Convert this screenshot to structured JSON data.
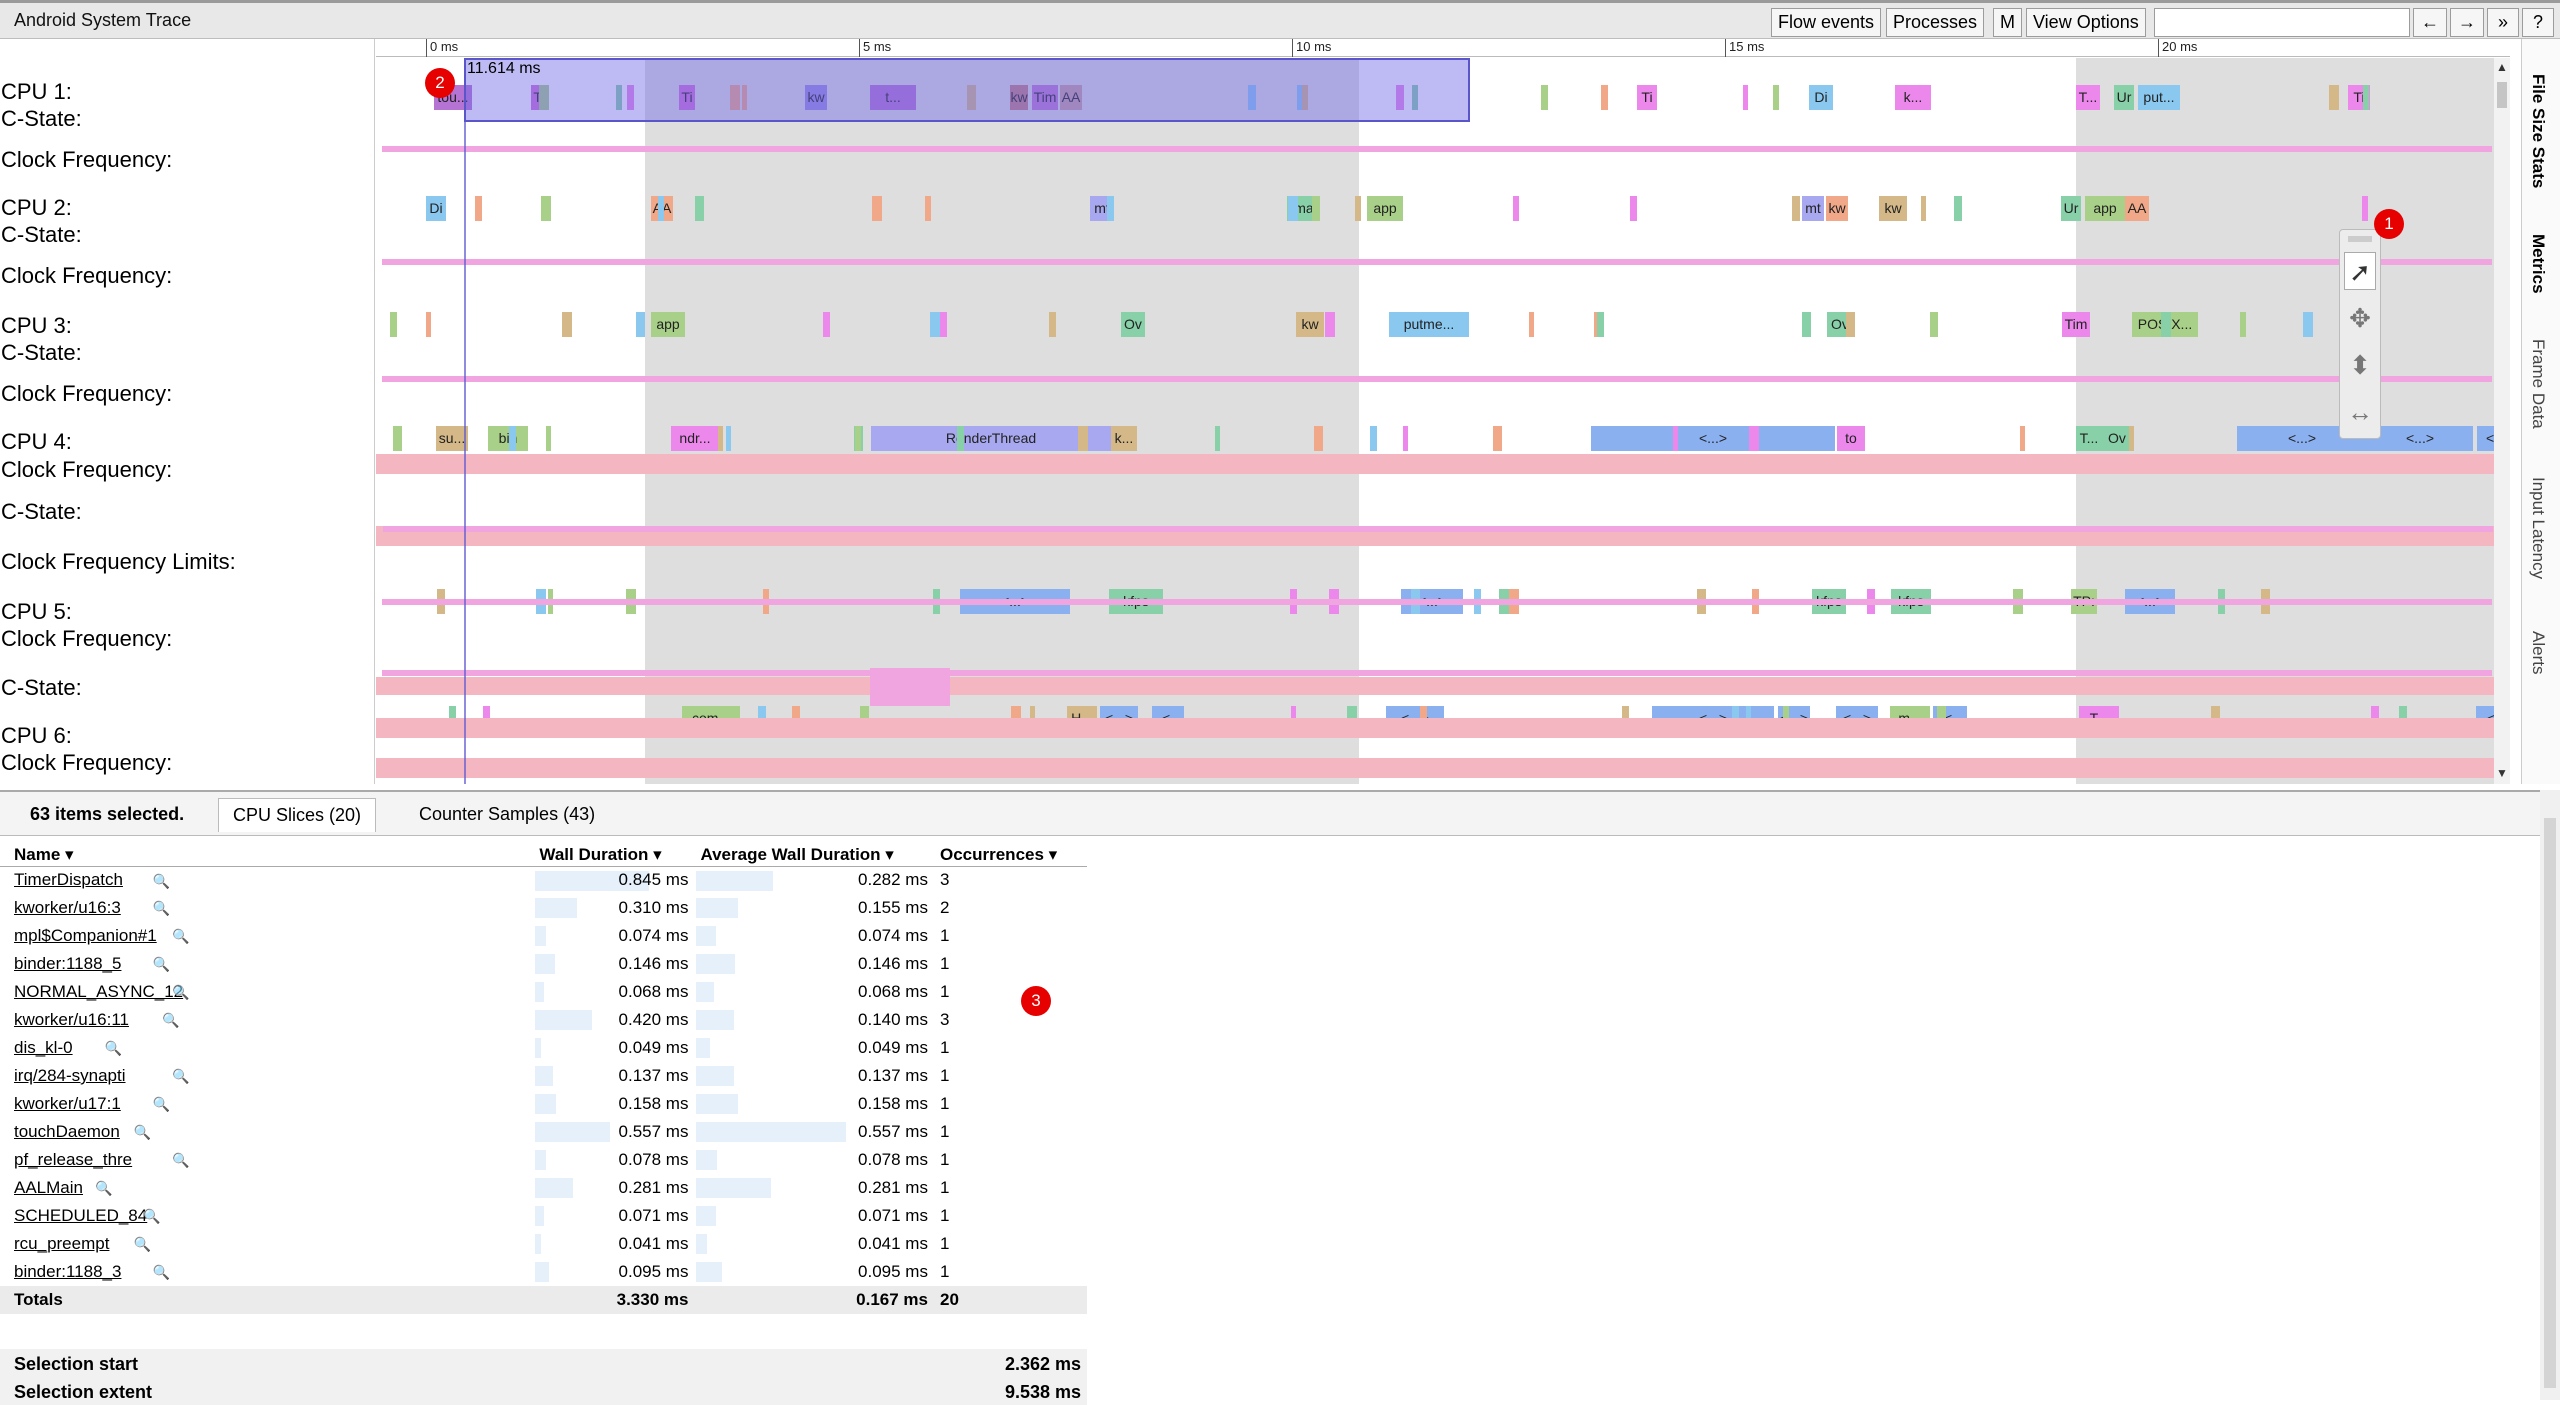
{
  "window": {
    "title": "Android System Trace"
  },
  "toolbar": {
    "flow_events": "Flow events",
    "processes": "Processes",
    "m": "M",
    "view_options": "View Options",
    "search_placeholder": "",
    "prev": "←",
    "next": "→",
    "more": "»",
    "help": "?"
  },
  "ruler": {
    "ticks": [
      "0 ms",
      "5 ms",
      "10 ms",
      "15 ms",
      "20 ms"
    ]
  },
  "selection": {
    "duration_label": "11.614 ms"
  },
  "tracks": {
    "labels": [
      "CPU 1:",
      "C-State:",
      "Clock Frequency:",
      "CPU 2:",
      "C-State:",
      "Clock Frequency:",
      "CPU 3:",
      "C-State:",
      "Clock Frequency:",
      "CPU 4:",
      "Clock Frequency:",
      "C-State:",
      "Clock Frequency Limits:",
      "CPU 5:",
      "Clock Frequency:",
      "C-State:",
      "CPU 6:",
      "Clock Frequency:"
    ],
    "slices": [
      {
        "t": "tou...",
        "c": "#b574d4"
      },
      {
        "t": "Ti",
        "c": "#d070d8"
      },
      {
        "t": "Ti",
        "c": "#d070d8"
      },
      {
        "t": "kw",
        "c": "#9a8ae0"
      },
      {
        "t": "t...",
        "c": "#b574d4"
      },
      {
        "t": "kw",
        "c": "#c28080"
      },
      {
        "t": "Tim",
        "c": "#c07ad0"
      },
      {
        "t": "AA",
        "c": "#c8a0a0"
      },
      {
        "t": "Ti",
        "c": "#ec88ec"
      },
      {
        "t": "Di",
        "c": "#8ac8f0"
      },
      {
        "t": "k...",
        "c": "#ec88ec"
      },
      {
        "t": "T...",
        "c": "#ec88ec"
      },
      {
        "t": "Ur",
        "c": "#88d0a8"
      },
      {
        "t": "put...",
        "c": "#8ac8f0"
      },
      {
        "t": "Ti",
        "c": "#ec88ec"
      },
      {
        "t": "Di",
        "c": "#8ac8f0"
      },
      {
        "t": "AA",
        "c": "#f0a888"
      },
      {
        "t": "mt",
        "c": "#a8a8f0"
      },
      {
        "t": "ma",
        "c": "#88d0a8"
      },
      {
        "t": "app",
        "c": "#a8d088"
      },
      {
        "t": "mt",
        "c": "#a8a8f0"
      },
      {
        "t": "kw",
        "c": "#f0a888"
      },
      {
        "t": "kw",
        "c": "#d4b888"
      },
      {
        "t": "Ur",
        "c": "#88d0a8"
      },
      {
        "t": "app",
        "c": "#a8d088"
      },
      {
        "t": "AA",
        "c": "#f0a888"
      },
      {
        "t": "app",
        "c": "#a8d088"
      },
      {
        "t": "Ov",
        "c": "#88d0a8"
      },
      {
        "t": "kw",
        "c": "#d4b888"
      },
      {
        "t": "putme...",
        "c": "#8ac8f0"
      },
      {
        "t": "Ov",
        "c": "#88d0a8"
      },
      {
        "t": "Tim",
        "c": "#ec88ec"
      },
      {
        "t": "POSIX...",
        "c": "#a8d088"
      },
      {
        "t": "su...",
        "c": "#d4b888"
      },
      {
        "t": "bin",
        "c": "#a8d088"
      },
      {
        "t": "ndr...",
        "c": "#ec88ec"
      },
      {
        "t": "RenderThread",
        "c": "#a8a8f0"
      },
      {
        "t": "k...",
        "c": "#d4b888"
      },
      {
        "t": "<...>",
        "c": "#8ab0f0"
      },
      {
        "t": "to",
        "c": "#ec88ec"
      },
      {
        "t": "T...",
        "c": "#88d0a8"
      },
      {
        "t": "Ov",
        "c": "#88d0a8"
      },
      {
        "t": "<...>",
        "c": "#8ab0f0"
      },
      {
        "t": "<...>",
        "c": "#8ab0f0"
      },
      {
        "t": "<.",
        "c": "#8ab0f0"
      },
      {
        "t": "<...>",
        "c": "#8ab0f0"
      },
      {
        "t": "kfps",
        "c": "#88d0a8"
      },
      {
        "t": "<...>",
        "c": "#8ab0f0"
      },
      {
        "t": "kfps",
        "c": "#88d0a8"
      },
      {
        "t": "kfps",
        "c": "#88d0a8"
      },
      {
        "t": "TP:",
        "c": "#a8d088"
      },
      {
        "t": "<...>",
        "c": "#8ab0f0"
      },
      {
        "t": "com...",
        "c": "#a8d088"
      },
      {
        "t": "H...",
        "c": "#d4b888"
      },
      {
        "t": "<...>",
        "c": "#8ab0f0"
      },
      {
        "t": "<.",
        "c": "#8ab0f0"
      },
      {
        "t": "<...>",
        "c": "#8ab0f0"
      },
      {
        "t": "<...>",
        "c": "#8ab0f0"
      },
      {
        "t": "<...>",
        "c": "#8ab0f0"
      },
      {
        "t": "<...>",
        "c": "#8ab0f0"
      },
      {
        "t": "m...",
        "c": "#a8d088"
      },
      {
        "t": "<.",
        "c": "#8ab0f0"
      },
      {
        "t": "T...",
        "c": "#ec88ec"
      },
      {
        "t": "<.",
        "c": "#8ab0f0"
      }
    ]
  },
  "side_tabs": [
    "File Size Stats",
    "Metrics",
    "Frame Data",
    "Input Latency",
    "Alerts"
  ],
  "tools": [
    "pointer-tool",
    "pan-tool",
    "zoom-tool",
    "timing-tool"
  ],
  "badges": [
    "1",
    "2",
    "3"
  ],
  "panel": {
    "selected_count": "63 items selected.",
    "tabs": [
      "CPU Slices (20)",
      "Counter Samples (43)"
    ],
    "columns": [
      "Name",
      "Wall Duration",
      "Average Wall Duration",
      "Occurrences"
    ],
    "rows": [
      {
        "name": "TimerDispatch",
        "wall": "0.845 ms",
        "avg": "0.282 ms",
        "occ": "3",
        "wf": 0.76,
        "af": 0.51
      },
      {
        "name": "kworker/u16:3",
        "wall": "0.310 ms",
        "avg": "0.155 ms",
        "occ": "2",
        "wf": 0.28,
        "af": 0.28
      },
      {
        "name": "mpl$Companion#1",
        "wall": "0.074 ms",
        "avg": "0.074 ms",
        "occ": "1",
        "wf": 0.07,
        "af": 0.13
      },
      {
        "name": "binder:1188_5",
        "wall": "0.146 ms",
        "avg": "0.146 ms",
        "occ": "1",
        "wf": 0.13,
        "af": 0.26
      },
      {
        "name": "NORMAL_ASYNC_12",
        "wall": "0.068 ms",
        "avg": "0.068 ms",
        "occ": "1",
        "wf": 0.06,
        "af": 0.12
      },
      {
        "name": "kworker/u16:11",
        "wall": "0.420 ms",
        "avg": "0.140 ms",
        "occ": "3",
        "wf": 0.38,
        "af": 0.25
      },
      {
        "name": "dis_kl-0",
        "wall": "0.049 ms",
        "avg": "0.049 ms",
        "occ": "1",
        "wf": 0.04,
        "af": 0.09
      },
      {
        "name": "irq/284-synapti",
        "wall": "0.137 ms",
        "avg": "0.137 ms",
        "occ": "1",
        "wf": 0.12,
        "af": 0.25
      },
      {
        "name": "kworker/u17:1",
        "wall": "0.158 ms",
        "avg": "0.158 ms",
        "occ": "1",
        "wf": 0.14,
        "af": 0.28
      },
      {
        "name": "touchDaemon",
        "wall": "0.557 ms",
        "avg": "0.557 ms",
        "occ": "1",
        "wf": 0.5,
        "af": 1.0
      },
      {
        "name": "pf_release_thre",
        "wall": "0.078 ms",
        "avg": "0.078 ms",
        "occ": "1",
        "wf": 0.07,
        "af": 0.14
      },
      {
        "name": "AALMain",
        "wall": "0.281 ms",
        "avg": "0.281 ms",
        "occ": "1",
        "wf": 0.25,
        "af": 0.5
      },
      {
        "name": "SCHEDULED_84",
        "wall": "0.071 ms",
        "avg": "0.071 ms",
        "occ": "1",
        "wf": 0.06,
        "af": 0.13
      },
      {
        "name": "rcu_preempt",
        "wall": "0.041 ms",
        "avg": "0.041 ms",
        "occ": "1",
        "wf": 0.04,
        "af": 0.07
      },
      {
        "name": "binder:1188_3",
        "wall": "0.095 ms",
        "avg": "0.095 ms",
        "occ": "1",
        "wf": 0.09,
        "af": 0.17
      }
    ],
    "totals": {
      "label": "Totals",
      "wall": "3.330 ms",
      "avg": "0.167 ms",
      "occ": "20"
    },
    "summary": [
      {
        "k": "Selection start",
        "v": "2.362 ms"
      },
      {
        "k": "Selection extent",
        "v": "9.538 ms"
      }
    ]
  },
  "colors": {
    "grey_region": "#d9d9d9",
    "selection": "#6e69e6",
    "badge": "#e60000",
    "freq_band": "#f4b6c0",
    "cstate": "#f0a4e0"
  }
}
